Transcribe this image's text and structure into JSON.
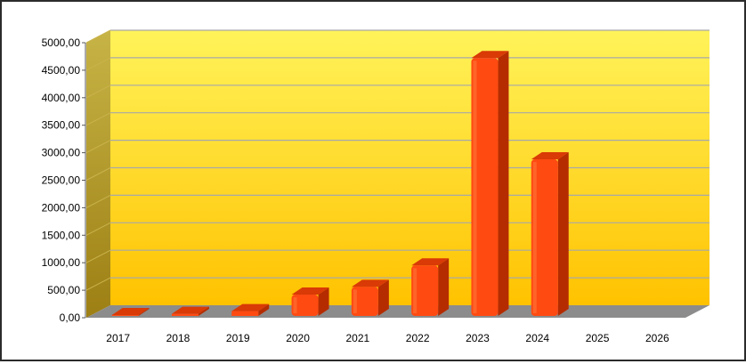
{
  "chart_data": {
    "type": "bar",
    "title": "",
    "xlabel": "",
    "ylabel": "",
    "categories": [
      "2017",
      "2018",
      "2019",
      "2020",
      "2021",
      "2022",
      "2023",
      "2024",
      "2025",
      "2026"
    ],
    "values": [
      0,
      70,
      120,
      420,
      560,
      950,
      4720,
      2880,
      null,
      null
    ],
    "ylim": [
      0,
      5000
    ],
    "y_ticks": [
      "0,00",
      "500,00",
      "1000,00",
      "1500,00",
      "2000,00",
      "2500,00",
      "3000,00",
      "3500,00",
      "4000,00",
      "4500,00",
      "5000,00"
    ],
    "grid": true,
    "legend": "none",
    "colors": {
      "bar_front": "#ff4a12",
      "bar_side": "#b52c00",
      "bar_top": "#d93a06",
      "wall_top": "#fff35a",
      "wall_bottom": "#ffc200",
      "side_wall": "#b8a030",
      "floor": "#8c8c8c",
      "gridline": "#a8a8a8"
    }
  }
}
